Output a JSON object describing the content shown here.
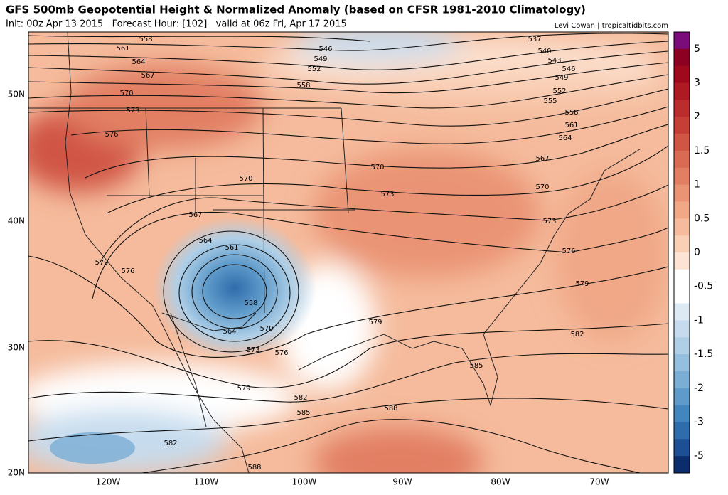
{
  "header": {
    "title": "GFS 500mb Geopotential Height & Normalized Anomaly (based on CFSR 1981-2010 Climatology)",
    "subtitle": "Init: 00z Apr 13 2015   Forecast Hour: [102]   valid at 06z Fri, Apr 17 2015",
    "credit": "Levi Cowan | tropicaltidbits.com"
  },
  "map": {
    "lat_labels": [
      "50N",
      "40N",
      "30N",
      "20N"
    ],
    "lon_labels": [
      "120W",
      "110W",
      "100W",
      "90W",
      "80W",
      "70W"
    ],
    "contour_labels": [
      558,
      561,
      564,
      567,
      570,
      573,
      576,
      579,
      576,
      570,
      567,
      564,
      561,
      558,
      564,
      570,
      573,
      576,
      579,
      582,
      585,
      588,
      582,
      588,
      585,
      582,
      579,
      576,
      573,
      570,
      567,
      564,
      561,
      558,
      555,
      552,
      549,
      546,
      543,
      540,
      537,
      546,
      549,
      552,
      558,
      570,
      573,
      579
    ]
  },
  "colorbar": {
    "labels": [
      5,
      3,
      2,
      1.5,
      1,
      0.5,
      0,
      -0.5,
      -1,
      -1.5,
      -2,
      -3,
      -5
    ],
    "colors": [
      "#7b0d7b",
      "#8c0022",
      "#9e0a1c",
      "#ad1a22",
      "#bb2d2d",
      "#c63f37",
      "#d05544",
      "#d96a53",
      "#e27f63",
      "#ea9475",
      "#f0a887",
      "#f5bb9c",
      "#f9cfb5",
      "#fce3d3",
      "#ffffff",
      "#ffffff",
      "#dde9f3",
      "#c6dcee",
      "#afcfe7",
      "#95bfdf",
      "#7aaed5",
      "#5f9bca",
      "#4385bd",
      "#2f6cab",
      "#1c4f93",
      "#0c2d6b"
    ]
  }
}
